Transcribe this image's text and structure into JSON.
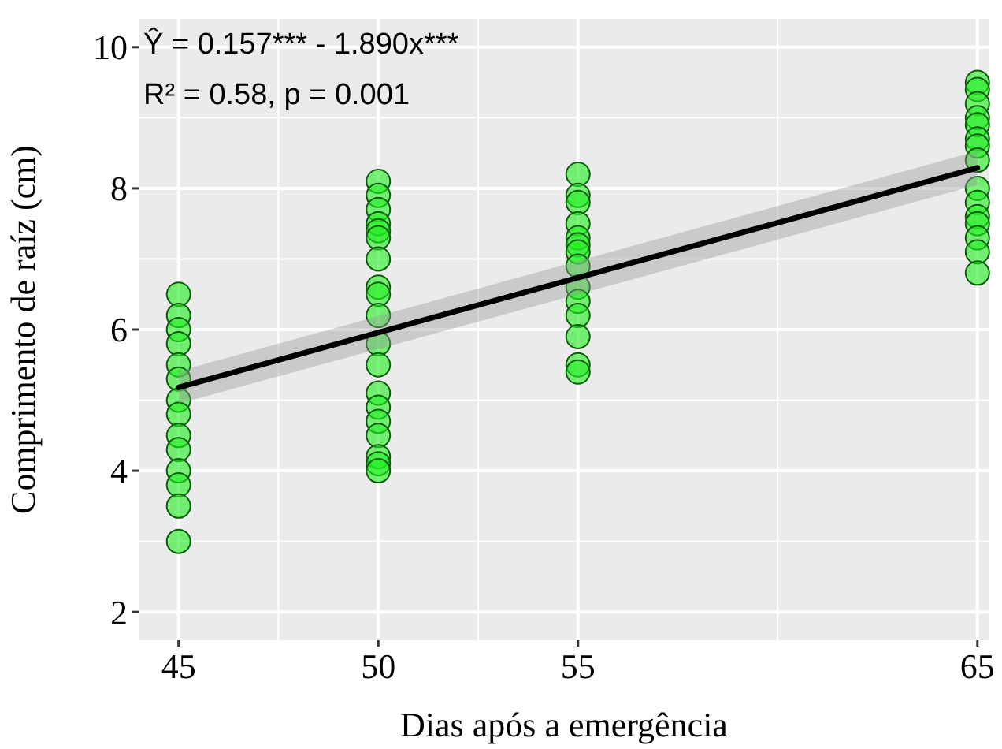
{
  "chart_data": {
    "type": "scatter",
    "xlabel": "Dias após a emergência",
    "ylabel": "Comprimento de raíz (cm)",
    "annotations": [
      "Ŷ = 0.157*** - 1.890x***",
      "R² = 0.58, p = 0.001"
    ],
    "xlim": [
      44,
      65.3
    ],
    "xticks": [
      45,
      50,
      55,
      65
    ],
    "ylim": [
      1.6,
      10.4
    ],
    "yticks": [
      2,
      4,
      6,
      8,
      10
    ],
    "grid": true,
    "series": [
      {
        "marker": "circle",
        "color": "#22ee22",
        "x": [
          45,
          45,
          45,
          45,
          45,
          45,
          45,
          45,
          45,
          45,
          45,
          45,
          45,
          45,
          50,
          50,
          50,
          50,
          50,
          50,
          50,
          50,
          50,
          50,
          50,
          50,
          50,
          50,
          50,
          50,
          50,
          50,
          50,
          55,
          55,
          55,
          55,
          55,
          55,
          55,
          55,
          55,
          55,
          55,
          55,
          55,
          55,
          65,
          65,
          65,
          65,
          65,
          65,
          65,
          65,
          65,
          65,
          65,
          65,
          65,
          65,
          65
        ],
        "values": [
          6.5,
          6.2,
          6.0,
          5.8,
          5.5,
          5.3,
          5.0,
          4.8,
          4.5,
          4.3,
          4.0,
          3.8,
          3.5,
          3.0,
          8.1,
          7.9,
          7.7,
          7.5,
          7.4,
          7.3,
          7.0,
          6.6,
          6.5,
          6.2,
          5.8,
          5.5,
          5.1,
          4.9,
          4.7,
          4.5,
          4.2,
          4.1,
          4.0,
          8.2,
          7.9,
          7.8,
          7.5,
          7.3,
          7.2,
          7.1,
          6.9,
          6.6,
          6.4,
          6.2,
          5.9,
          5.5,
          5.4,
          9.5,
          9.4,
          9.2,
          9.0,
          8.9,
          8.7,
          8.6,
          8.4,
          8.0,
          7.8,
          7.6,
          7.5,
          7.3,
          7.1,
          6.8
        ]
      },
      {
        "type": "line",
        "color": "#000000",
        "x": [
          45,
          65
        ],
        "values": [
          5.18,
          8.29
        ],
        "lower": [
          4.95,
          8.05
        ],
        "upper": [
          5.41,
          8.53
        ]
      }
    ]
  }
}
